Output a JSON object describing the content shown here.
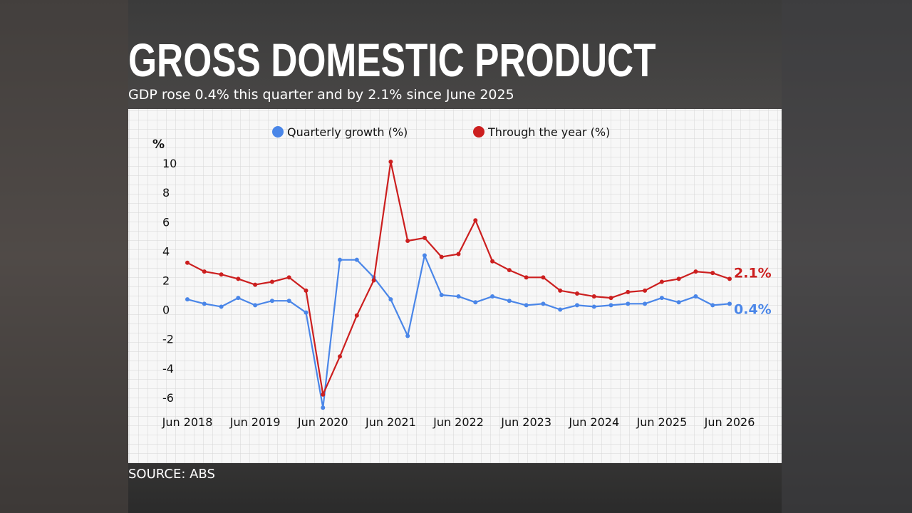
{
  "chart_data": {
    "type": "line",
    "title": "GROSS DOMESTIC PRODUCT",
    "subtitle": "GDP rose 0.4% this quarter and by 2.1% since June 2025",
    "source": "SOURCE: ABS",
    "y_label": "%",
    "categories": [
      "Jun 2018",
      null,
      null,
      null,
      "Jun 2019",
      null,
      null,
      null,
      "Jun 2020",
      null,
      null,
      null,
      "Jun 2021",
      null,
      null,
      null,
      "Jun 2022",
      null,
      null,
      null,
      "Jun 2023",
      null,
      null,
      null,
      "Jun 2024",
      null,
      null,
      null,
      "Jun 2025",
      null,
      null,
      null,
      "Jun 2026"
    ],
    "series": [
      {
        "name": "Quarterly growth (%)",
        "color": "#4a86e8",
        "values": [
          0.7,
          0.4,
          0.2,
          0.8,
          0.3,
          0.6,
          0.6,
          -0.2,
          -6.7,
          3.4,
          3.4,
          2.2,
          0.7,
          -1.8,
          3.7,
          1.0,
          0.9,
          0.5,
          0.9,
          0.6,
          0.3,
          0.4,
          0.0,
          0.3,
          0.2,
          0.3,
          0.4,
          0.4,
          0.8,
          0.5,
          0.9,
          0.3,
          0.4
        ],
        "value_labels": [
          null,
          null,
          null,
          null,
          null,
          null,
          null,
          null,
          null,
          null,
          null,
          null,
          null,
          null,
          null,
          null,
          null,
          null,
          null,
          null,
          null,
          null,
          null,
          null,
          null,
          null,
          null,
          null,
          null,
          null,
          null,
          null,
          "0.4%"
        ]
      },
      {
        "name": "Through the year (%)",
        "color": "#cc1f1f",
        "values": [
          3.2,
          2.6,
          2.4,
          2.1,
          1.7,
          1.9,
          2.2,
          1.3,
          -5.8,
          -3.2,
          -0.4,
          2.0,
          10.1,
          4.7,
          4.9,
          3.6,
          3.8,
          6.1,
          3.3,
          2.7,
          2.2,
          2.2,
          1.3,
          1.1,
          0.9,
          0.8,
          1.2,
          1.3,
          1.9,
          2.1,
          2.6,
          2.5,
          2.1
        ],
        "value_labels": [
          null,
          null,
          null,
          null,
          null,
          null,
          null,
          null,
          null,
          null,
          null,
          null,
          null,
          null,
          null,
          null,
          null,
          null,
          null,
          null,
          null,
          null,
          null,
          null,
          null,
          null,
          null,
          null,
          null,
          null,
          null,
          null,
          "2.1%"
        ]
      }
    ],
    "ylim": [
      -7,
      11
    ],
    "yticks": [
      -6,
      -4,
      -2,
      0,
      2,
      4,
      6,
      8,
      10
    ],
    "grid": false
  }
}
